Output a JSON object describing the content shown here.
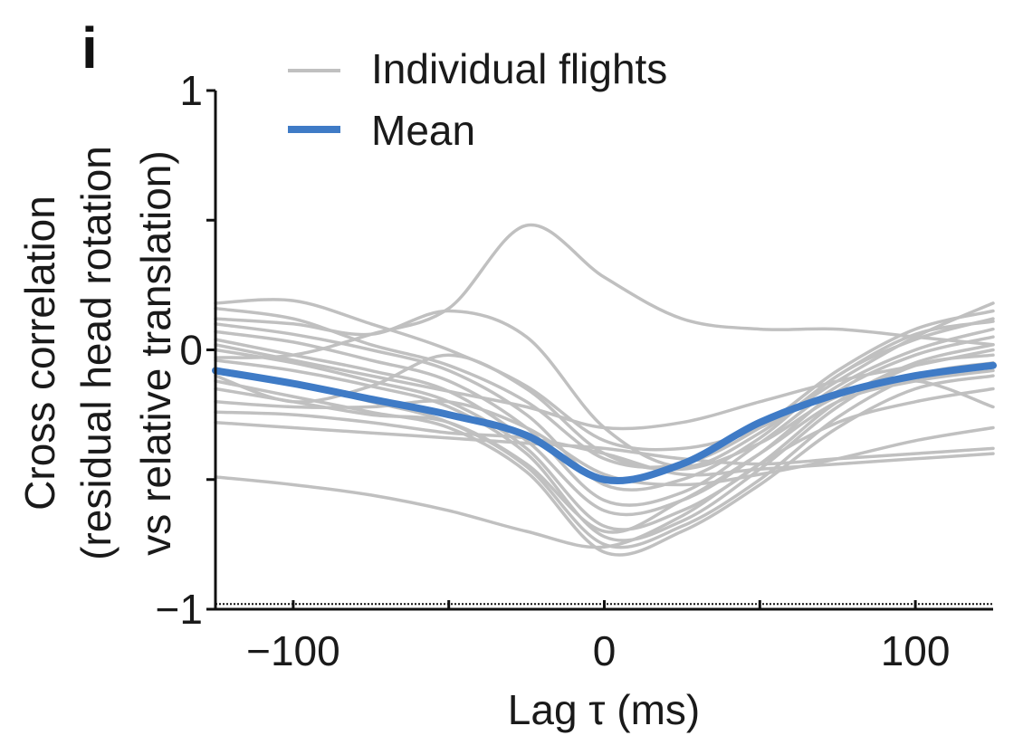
{
  "panel_label": "i",
  "colors": {
    "individual": "#c0c0c0",
    "mean": "#3f7bc6",
    "axis": "#111111"
  },
  "chart_data": {
    "type": "line",
    "title": "",
    "xlabel": "Lag τ (ms)",
    "ylabel_line1": "Cross correlation",
    "ylabel_line2": "(residual head rotation",
    "ylabel_line3": "vs relative translation)",
    "xlim": [
      -125,
      125
    ],
    "ylim": [
      -1,
      1
    ],
    "x_ticks": [
      -100,
      -50,
      0,
      50,
      100
    ],
    "x_tick_labels": [
      "−100",
      "",
      "0",
      "",
      "100"
    ],
    "y_ticks": [
      -1,
      -0.5,
      0,
      0.5,
      1
    ],
    "y_tick_labels": [
      "−1",
      "",
      "0",
      "",
      "1"
    ],
    "reference_line_y": -0.98,
    "legend_position": "top-left",
    "legend": [
      {
        "label": "Individual flights",
        "series": "individual"
      },
      {
        "label": "Mean",
        "series": "mean"
      }
    ],
    "x": [
      -125,
      -100,
      -75,
      -50,
      -25,
      0,
      25,
      50,
      75,
      100,
      125
    ],
    "series": [
      {
        "name": "Mean",
        "kind": "mean",
        "values": [
          -0.08,
          -0.13,
          -0.19,
          -0.25,
          -0.33,
          -0.5,
          -0.44,
          -0.28,
          -0.17,
          -0.1,
          -0.06
        ]
      },
      {
        "kind": "individual",
        "values": [
          -0.03,
          -0.02,
          0.06,
          0.16,
          0.48,
          0.28,
          0.12,
          0.08,
          0.08,
          0.05,
          0.02
        ]
      },
      {
        "kind": "individual",
        "values": [
          0.18,
          0.19,
          0.1,
          0.0,
          -0.14,
          -0.35,
          -0.38,
          -0.3,
          -0.12,
          0.05,
          0.18
        ]
      },
      {
        "kind": "individual",
        "values": [
          0.16,
          0.12,
          0.02,
          -0.06,
          -0.2,
          -0.42,
          -0.44,
          -0.3,
          -0.08,
          0.08,
          0.15
        ]
      },
      {
        "kind": "individual",
        "values": [
          0.1,
          0.06,
          0.0,
          -0.08,
          -0.25,
          -0.52,
          -0.5,
          -0.34,
          -0.1,
          0.04,
          0.12
        ]
      },
      {
        "kind": "individual",
        "values": [
          0.07,
          0.03,
          -0.04,
          -0.12,
          -0.3,
          -0.58,
          -0.55,
          -0.36,
          -0.14,
          0.0,
          0.08
        ]
      },
      {
        "kind": "individual",
        "values": [
          0.04,
          -0.02,
          -0.08,
          -0.16,
          -0.35,
          -0.62,
          -0.58,
          -0.4,
          -0.16,
          -0.02,
          0.05
        ]
      },
      {
        "kind": "individual",
        "values": [
          0.0,
          -0.05,
          -0.12,
          -0.2,
          -0.38,
          -0.68,
          -0.62,
          -0.44,
          -0.2,
          -0.05,
          0.02
        ]
      },
      {
        "kind": "individual",
        "values": [
          -0.04,
          -0.08,
          -0.14,
          -0.22,
          -0.4,
          -0.72,
          -0.66,
          -0.46,
          -0.22,
          -0.06,
          -0.02
        ]
      },
      {
        "kind": "individual",
        "values": [
          -0.08,
          -0.13,
          -0.2,
          -0.28,
          -0.45,
          -0.75,
          -0.68,
          -0.5,
          -0.26,
          -0.1,
          -0.05
        ]
      },
      {
        "kind": "individual",
        "values": [
          -0.12,
          -0.18,
          -0.24,
          -0.3,
          -0.47,
          -0.78,
          -0.7,
          -0.52,
          -0.3,
          -0.15,
          -0.1
        ]
      },
      {
        "kind": "individual",
        "values": [
          -0.15,
          -0.2,
          -0.25,
          -0.28,
          -0.44,
          -0.7,
          -0.58,
          -0.4,
          -0.2,
          -0.12,
          -0.08
        ]
      },
      {
        "kind": "individual",
        "values": [
          -0.2,
          -0.22,
          -0.22,
          -0.2,
          -0.3,
          -0.48,
          -0.52,
          -0.48,
          -0.42,
          -0.35,
          -0.3
        ]
      },
      {
        "kind": "individual",
        "values": [
          -0.24,
          -0.25,
          -0.28,
          -0.32,
          -0.34,
          -0.4,
          -0.48,
          -0.46,
          -0.44,
          -0.42,
          -0.4
        ]
      },
      {
        "kind": "individual",
        "values": [
          -0.28,
          -0.3,
          -0.32,
          -0.34,
          -0.36,
          -0.38,
          -0.42,
          -0.44,
          -0.42,
          -0.4,
          -0.38
        ]
      },
      {
        "kind": "individual",
        "values": [
          -0.49,
          -0.52,
          -0.56,
          -0.62,
          -0.7,
          -0.76,
          -0.64,
          -0.44,
          -0.28,
          -0.2,
          -0.15
        ]
      },
      {
        "kind": "individual",
        "values": [
          0.02,
          -0.04,
          -0.1,
          -0.16,
          -0.22,
          -0.3,
          -0.28,
          -0.2,
          -0.12,
          -0.06,
          0.0
        ]
      },
      {
        "kind": "individual",
        "values": [
          0.12,
          0.1,
          0.06,
          0.15,
          0.05,
          -0.3,
          -0.45,
          -0.32,
          -0.1,
          0.06,
          0.11
        ]
      },
      {
        "kind": "individual",
        "values": [
          -0.1,
          -0.2,
          -0.14,
          -0.02,
          -0.15,
          -0.4,
          -0.46,
          -0.36,
          -0.18,
          -0.12,
          -0.22
        ]
      }
    ]
  }
}
